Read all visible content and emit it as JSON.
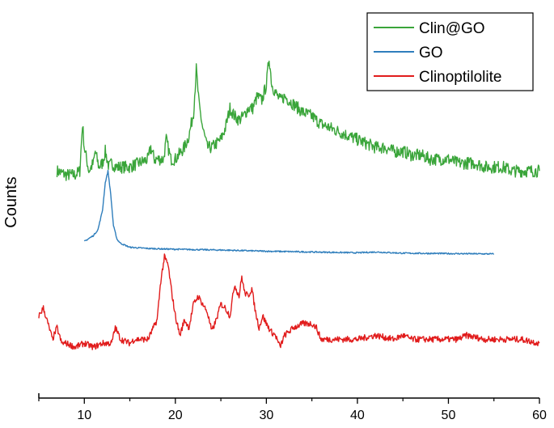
{
  "chart_data": {
    "type": "line",
    "xlabel": "",
    "ylabel": "Counts",
    "xlim": [
      5,
      60
    ],
    "ylim": [
      0,
      100
    ],
    "x_ticks": [
      10,
      20,
      30,
      40,
      50,
      60
    ],
    "y_ticks_shown": false,
    "grid": false,
    "legend_position": "top-right",
    "series": [
      {
        "name": "Clin@GO",
        "color": "#3aa53a",
        "x": [
          7.0,
          8.0,
          9.0,
          9.5,
          9.8,
          10.0,
          10.5,
          11.0,
          11.2,
          11.6,
          12.0,
          12.3,
          12.7,
          13.0,
          13.5,
          14.0,
          15.0,
          16.0,
          17.0,
          17.3,
          17.7,
          18.0,
          18.7,
          19.0,
          19.5,
          20.0,
          21.0,
          21.5,
          22.0,
          22.3,
          22.6,
          23.0,
          23.5,
          24.0,
          24.5,
          25.0,
          25.5,
          26.0,
          26.5,
          27.0,
          27.5,
          28.0,
          28.5,
          29.0,
          29.5,
          30.0,
          30.3,
          30.6,
          31.0,
          31.5,
          32.0,
          32.5,
          33.0,
          34.0,
          35.0,
          36.0,
          37.0,
          38.0,
          39.0,
          40.0,
          41.0,
          42.0,
          43.0,
          44.0,
          45.0,
          46.0,
          47.0,
          48.0,
          49.0,
          50.0,
          51.0,
          52.0,
          53.0,
          54.0,
          55.0,
          56.0,
          57.0,
          58.0,
          59.0,
          60.0
        ],
        "values": [
          58,
          57,
          57,
          58,
          70,
          64,
          58,
          60,
          63,
          59,
          60,
          63,
          59,
          60,
          59,
          59,
          59,
          60,
          61,
          64,
          61,
          61,
          61,
          66,
          61,
          61,
          64,
          67,
          73,
          84,
          75,
          69,
          64,
          64,
          65,
          66,
          69,
          74,
          72,
          71,
          72,
          74,
          74,
          77,
          76,
          80,
          87,
          80,
          78,
          76,
          77,
          76,
          75,
          73,
          72,
          70,
          69,
          68,
          67,
          66,
          65,
          64,
          64,
          63,
          63,
          62,
          62,
          61,
          61,
          61,
          60,
          60,
          60,
          59,
          59,
          59,
          58,
          58,
          58,
          58
        ]
      },
      {
        "name": "GO",
        "color": "#2f7ebc",
        "x": [
          10.0,
          11.0,
          11.5,
          12.0,
          12.3,
          12.6,
          12.9,
          13.2,
          13.6,
          14.0,
          15.0,
          17.0,
          20.0,
          25.0,
          30.0,
          35.0,
          40.0,
          42.0,
          45.0,
          50.0,
          55.0
        ],
        "values": [
          40,
          41.5,
          43,
          48,
          55,
          58,
          52,
          44,
          40.5,
          39.5,
          38.5,
          38.2,
          38,
          37.8,
          37.5,
          37.3,
          37.1,
          37.3,
          37,
          36.9,
          36.8
        ]
      },
      {
        "name": "Clinoptilolite",
        "color": "#e11c1c",
        "x": [
          5.0,
          5.5,
          6.0,
          6.5,
          7.0,
          7.5,
          8.0,
          9.0,
          10.0,
          11.0,
          12.0,
          13.0,
          13.4,
          14.0,
          15.0,
          15.5,
          16.0,
          17.0,
          18.0,
          18.4,
          18.8,
          19.2,
          19.6,
          20.0,
          20.5,
          21.0,
          21.5,
          22.0,
          22.5,
          23.0,
          23.5,
          24.0,
          24.5,
          25.0,
          25.5,
          26.0,
          26.5,
          27.0,
          27.3,
          27.6,
          28.0,
          28.4,
          28.8,
          29.2,
          29.6,
          30.0,
          30.5,
          31.0,
          31.5,
          32.0,
          32.5,
          33.0,
          34.0,
          35.0,
          35.5,
          36.0,
          37.0,
          38.0,
          40.0,
          42.0,
          44.0,
          45.0,
          46.0,
          48.0,
          50.0,
          51.0,
          52.0,
          54.0,
          56.0,
          58.0,
          60.0
        ],
        "values": [
          21,
          23,
          19,
          15,
          18,
          14,
          14,
          13,
          14,
          13,
          14,
          14,
          18,
          15,
          14,
          15,
          15,
          15,
          20,
          30,
          36,
          34,
          27,
          21,
          16,
          20,
          18,
          24,
          26,
          24,
          22,
          17,
          20,
          24,
          23,
          21,
          29,
          26,
          31,
          27,
          26,
          28,
          22,
          18,
          21,
          19,
          17,
          16,
          13,
          16,
          17,
          18,
          19,
          19,
          18,
          15,
          15,
          15,
          15,
          16,
          15,
          16,
          15,
          15,
          15,
          15,
          16,
          15,
          15,
          15,
          14
        ]
      }
    ]
  }
}
